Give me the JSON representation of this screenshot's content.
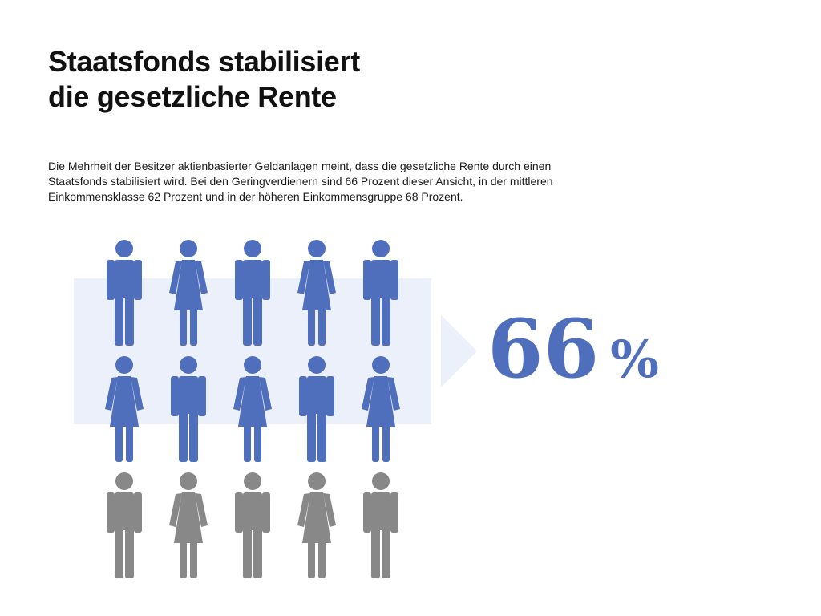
{
  "title": {
    "line1": "Staatsfonds stabilisiert",
    "line2": "die gesetzliche Rente"
  },
  "description": {
    "line1": "Die Mehrheit der Besitzer aktienbasierter Geldanlagen meint, dass die gesetzliche Rente durch einen",
    "line2": "Staatsfonds stabilisiert wird. Bei den Geringverdienern sind 66 Prozent dieser Ansicht, in der mittleren",
    "line3": "Einkommensklasse 62 Prozent und in der höheren Einkommensgruppe 68 Prozent."
  },
  "highlight": {
    "value": "66",
    "unit": "%"
  },
  "colors": {
    "highlight": "#4f6ebb",
    "neutral": "#888888",
    "band": "#ebf0fa"
  },
  "icons": {
    "male": "male-person-icon",
    "female": "female-person-icon"
  },
  "pictogram": {
    "rows": [
      [
        "male",
        "female",
        "male",
        "female",
        "male"
      ],
      [
        "female",
        "male",
        "female",
        "male",
        "female"
      ],
      [
        "male",
        "female",
        "male",
        "female",
        "male"
      ]
    ],
    "highlighted_rows": 2,
    "total_rows": 3
  }
}
